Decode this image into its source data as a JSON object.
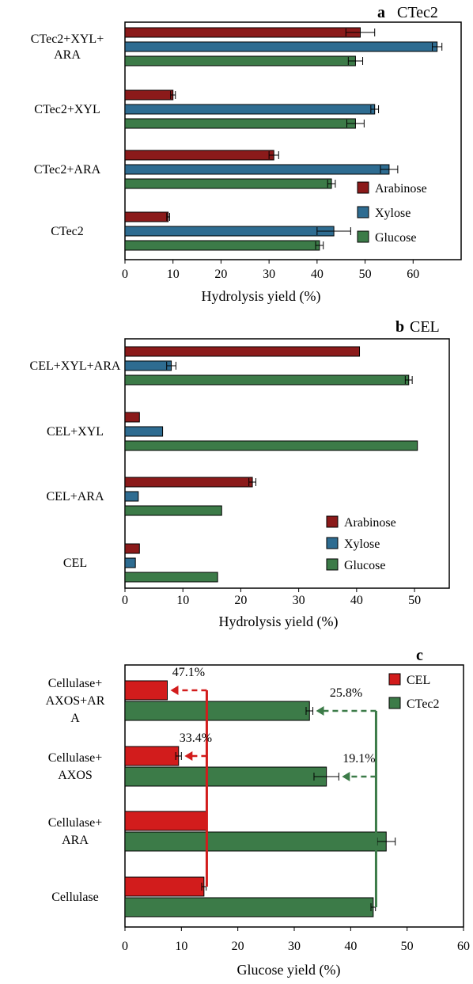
{
  "colors": {
    "Arabinose": "#8B1A1A",
    "Xylose": "#2E6C91",
    "Glucose": "#3C7B48",
    "CEL": "#D21C1C",
    "CTec2": "#3C7B48"
  },
  "chart_data": [
    {
      "type": "bar",
      "orientation": "horizontal",
      "panel_letter": "a",
      "panel_name": "CTec2",
      "xlabel": "Hydrolysis yield (%)",
      "xlim": [
        0,
        70
      ],
      "xticks": [
        0,
        10,
        20,
        30,
        40,
        50,
        60
      ],
      "categories": [
        [
          "CTec2+XYL+",
          "ARA"
        ],
        [
          "CTec2+XYL"
        ],
        [
          "CTec2+ARA"
        ],
        [
          "CTec2"
        ]
      ],
      "series": [
        {
          "name": "Arabinose",
          "values": [
            49,
            10,
            31,
            9
          ],
          "errors": [
            3,
            0.5,
            1,
            0.3
          ]
        },
        {
          "name": "Xylose",
          "values": [
            65,
            52,
            55,
            43.5
          ],
          "errors": [
            1,
            0.8,
            1.8,
            3.5
          ]
        },
        {
          "name": "Glucose",
          "values": [
            48,
            48,
            43,
            40.5
          ],
          "errors": [
            1.5,
            1.8,
            0.8,
            0.8
          ]
        }
      ],
      "legend": {
        "position": "lower-right",
        "entries": [
          "Arabinose",
          "Xylose",
          "Glucose"
        ]
      }
    },
    {
      "type": "bar",
      "orientation": "horizontal",
      "panel_letter": "b",
      "panel_name": "CEL",
      "xlabel": "Hydrolysis yield (%)",
      "xlim": [
        0,
        56
      ],
      "xticks": [
        0,
        10,
        20,
        30,
        40,
        50
      ],
      "categories": [
        [
          "CEL+XYL+ARA"
        ],
        [
          "CEL+XYL"
        ],
        [
          "CEL+ARA"
        ],
        [
          "CEL"
        ]
      ],
      "series": [
        {
          "name": "Arabinose",
          "values": [
            40.5,
            2.5,
            22,
            2.5
          ],
          "errors": [
            0,
            0,
            0.6,
            0
          ]
        },
        {
          "name": "Xylose",
          "values": [
            8,
            6.5,
            2.3,
            1.8
          ],
          "errors": [
            0.8,
            0,
            0,
            0
          ]
        },
        {
          "name": "Glucose",
          "values": [
            49,
            50.5,
            16.7,
            16
          ],
          "errors": [
            0.6,
            0,
            0,
            0
          ]
        }
      ],
      "legend": {
        "position": "lower-right",
        "entries": [
          "Arabinose",
          "Xylose",
          "Glucose"
        ]
      }
    },
    {
      "type": "bar",
      "orientation": "horizontal",
      "panel_letter": "c",
      "xlabel": "Glucose yield (%)",
      "xlim": [
        0,
        60
      ],
      "xticks": [
        0,
        10,
        20,
        30,
        40,
        50,
        60
      ],
      "categories": [
        [
          "Cellulase+",
          "AXOS+AR",
          "A"
        ],
        [
          "Cellulase+",
          "AXOS"
        ],
        [
          "Cellulase+",
          "ARA"
        ],
        [
          "Cellulase"
        ]
      ],
      "series": [
        {
          "name": "CEL",
          "values": [
            7.5,
            9.5,
            14.5,
            14
          ],
          "errors": [
            0,
            0.5,
            0,
            0.4
          ]
        },
        {
          "name": "CTec2",
          "values": [
            32.7,
            35.7,
            46.3,
            44
          ],
          "errors": [
            0.6,
            2.2,
            1.6,
            0.4
          ]
        }
      ],
      "annotations": [
        {
          "text": "47.1%",
          "series": "CEL",
          "category_index": 0
        },
        {
          "text": "33.4%",
          "series": "CEL",
          "category_index": 1
        },
        {
          "text": "25.8%",
          "series": "CTec2",
          "category_index": 0
        },
        {
          "text": "19.1%",
          "series": "CTec2",
          "category_index": 1
        }
      ],
      "reference_lines": [
        {
          "series": "CEL",
          "value": 14.5
        },
        {
          "series": "CTec2",
          "value": 44.5
        }
      ],
      "legend": {
        "position": "top-right",
        "entries": [
          "CEL",
          "CTec2"
        ]
      }
    }
  ]
}
